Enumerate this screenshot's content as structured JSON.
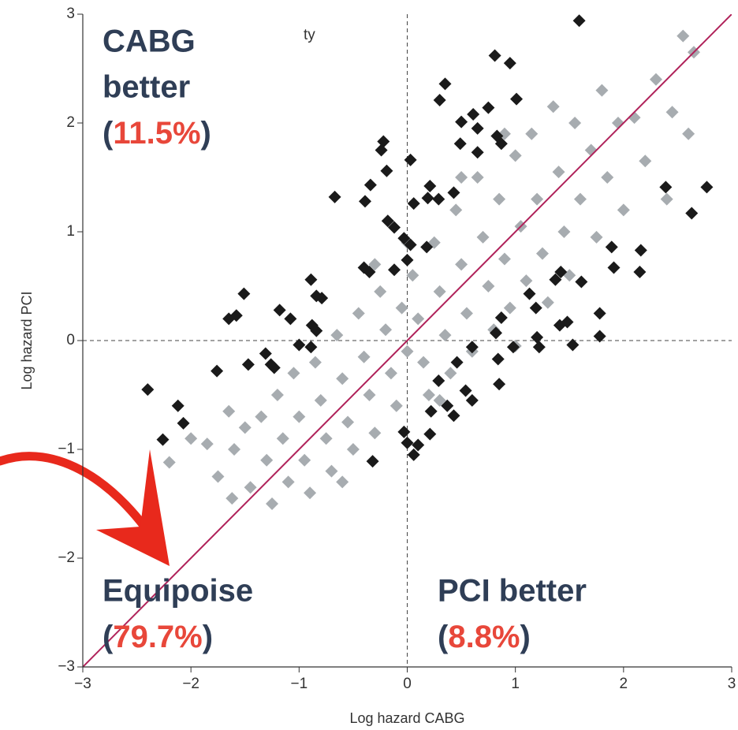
{
  "chart_data": {
    "type": "scatter",
    "x_label": "Log hazard CABG",
    "y_label": "Log hazard PCI",
    "xlim": [
      -3,
      3
    ],
    "ylim": [
      -3,
      3
    ],
    "xticks": [
      {
        "value": -3,
        "label": "−3"
      },
      {
        "value": -2,
        "label": "−2"
      },
      {
        "value": -1,
        "label": "−1"
      },
      0,
      1,
      2,
      3
    ],
    "yticks": [
      {
        "value": -3,
        "label": "−3"
      },
      {
        "value": -2,
        "label": "−2"
      },
      {
        "value": -1,
        "label": "−1"
      },
      0,
      1,
      2,
      3
    ],
    "note": "ty",
    "annotations": [
      {
        "lines": [
          "CABG",
          "better"
        ],
        "share": [
          "(",
          "11.5%",
          ")"
        ]
      },
      {
        "lines": [
          "Equipoise"
        ],
        "share": [
          "(",
          "79.7%",
          ")"
        ]
      },
      {
        "lines": [
          "PCI better"
        ],
        "share": [
          "(",
          "8.8%",
          ")"
        ]
      }
    ],
    "series": [
      {
        "color": "#a7acb0",
        "x": [
          -2.2,
          -1.85,
          -1.65,
          -1.6,
          -1.62,
          -1.45,
          -1.5,
          -1.35,
          -1.3,
          -1.2,
          -1.15,
          -1.1,
          -1.05,
          -1.0,
          -0.95,
          -0.9,
          -0.85,
          -0.8,
          -0.75,
          -0.7,
          -0.65,
          -0.6,
          -0.55,
          -0.5,
          -0.45,
          -0.4,
          -0.35,
          -0.3,
          -0.25,
          -0.2,
          -0.15,
          -0.1,
          -0.05,
          0.0,
          0.05,
          0.1,
          0.15,
          0.2,
          0.25,
          0.3,
          0.35,
          0.4,
          0.45,
          0.5,
          0.55,
          0.6,
          0.65,
          0.7,
          0.75,
          0.8,
          0.85,
          0.9,
          0.95,
          1.0,
          1.05,
          1.1,
          1.15,
          1.2,
          1.25,
          1.3,
          1.35,
          1.4,
          1.45,
          1.5,
          1.55,
          1.6,
          1.7,
          1.75,
          1.8,
          1.85,
          1.95,
          2.0,
          2.1,
          2.2,
          2.3,
          2.4,
          2.45,
          2.55,
          2.6,
          2.65,
          -1.75,
          -1.25,
          -0.6,
          0.0,
          -0.3,
          0.5,
          0.9,
          1.0,
          0.3,
          -2.0
        ],
        "values": [
          -1.12,
          -0.95,
          -0.65,
          -1.0,
          -1.45,
          -1.35,
          -0.8,
          -0.7,
          -1.1,
          -0.5,
          -0.9,
          -1.3,
          -0.3,
          -0.7,
          -1.1,
          -1.4,
          -0.2,
          -0.55,
          -0.9,
          -1.2,
          0.05,
          -0.35,
          -0.75,
          -1.0,
          0.25,
          -0.15,
          -0.5,
          -0.85,
          0.45,
          0.1,
          -0.3,
          -0.6,
          0.3,
          -0.1,
          0.6,
          0.2,
          -0.2,
          -0.5,
          0.9,
          0.45,
          0.05,
          -0.3,
          1.2,
          0.7,
          0.25,
          -0.1,
          1.5,
          0.95,
          0.5,
          0.1,
          1.3,
          0.75,
          0.3,
          1.7,
          1.05,
          0.55,
          1.9,
          1.3,
          0.8,
          0.35,
          2.15,
          1.55,
          1.0,
          0.6,
          2.0,
          1.3,
          1.75,
          0.95,
          2.3,
          1.5,
          2.0,
          1.2,
          2.05,
          1.65,
          2.4,
          1.3,
          2.1,
          2.8,
          1.9,
          2.65,
          -1.25,
          -1.5,
          -1.3,
          0.9,
          0.7,
          1.5,
          1.9,
          -0.05,
          -0.55,
          -0.9
        ]
      },
      {
        "color": "#1a1a1a",
        "x": [
          1.59,
          0.81,
          0.95,
          1.01,
          0.35,
          0.3,
          0.61,
          0.75,
          0.5,
          0.65,
          0.49,
          0.83,
          0.87,
          0.65,
          -0.22,
          -0.24,
          0.03,
          -0.19,
          0.21,
          0.29,
          0.43,
          0.19,
          -0.34,
          -0.67,
          -0.39,
          0.06,
          -0.18,
          -0.12,
          -0.03,
          0.03,
          0.18,
          0.0,
          -0.12,
          -0.4,
          -0.35,
          -0.89,
          -0.84,
          -0.79,
          -1.51,
          -1.65,
          -1.58,
          -1.18,
          -1.08,
          -0.88,
          -0.84,
          -1.0,
          -0.89,
          -1.31,
          -1.26,
          -1.47,
          -1.23,
          -1.76,
          -2.4,
          -2.12,
          -2.07,
          -2.26,
          -0.32,
          -0.03,
          0.0,
          0.06,
          0.1,
          0.21,
          0.22,
          0.37,
          0.43,
          0.54,
          0.6,
          0.29,
          0.46,
          0.6,
          0.87,
          0.82,
          0.98,
          0.84,
          1.13,
          1.19,
          1.37,
          1.42,
          1.61,
          1.2,
          1.22,
          1.41,
          1.48,
          1.53,
          1.78,
          1.78,
          1.89,
          1.91,
          2.16,
          2.15,
          2.39,
          2.63,
          2.77,
          0.85
        ],
        "values": [
          2.94,
          2.62,
          2.55,
          2.22,
          2.36,
          2.21,
          2.08,
          2.14,
          2.01,
          1.95,
          1.81,
          1.88,
          1.81,
          1.73,
          1.83,
          1.75,
          1.66,
          1.56,
          1.42,
          1.3,
          1.36,
          1.31,
          1.43,
          1.32,
          1.28,
          1.26,
          1.1,
          1.04,
          0.94,
          0.88,
          0.86,
          0.74,
          0.65,
          0.67,
          0.63,
          0.56,
          0.41,
          0.39,
          0.43,
          0.2,
          0.23,
          0.28,
          0.2,
          0.14,
          0.09,
          -0.04,
          -0.06,
          -0.12,
          -0.22,
          -0.22,
          -0.25,
          -0.28,
          -0.45,
          -0.6,
          -0.76,
          -0.91,
          -1.11,
          -0.84,
          -0.94,
          -1.05,
          -0.96,
          -0.86,
          -0.65,
          -0.6,
          -0.69,
          -0.46,
          -0.55,
          -0.37,
          -0.2,
          -0.06,
          0.21,
          0.07,
          -0.06,
          -0.17,
          0.43,
          0.3,
          0.56,
          0.63,
          0.54,
          0.03,
          -0.06,
          0.14,
          0.17,
          -0.04,
          0.25,
          0.04,
          0.86,
          0.67,
          0.83,
          0.63,
          1.41,
          1.17,
          1.41,
          -0.4
        ]
      }
    ]
  }
}
